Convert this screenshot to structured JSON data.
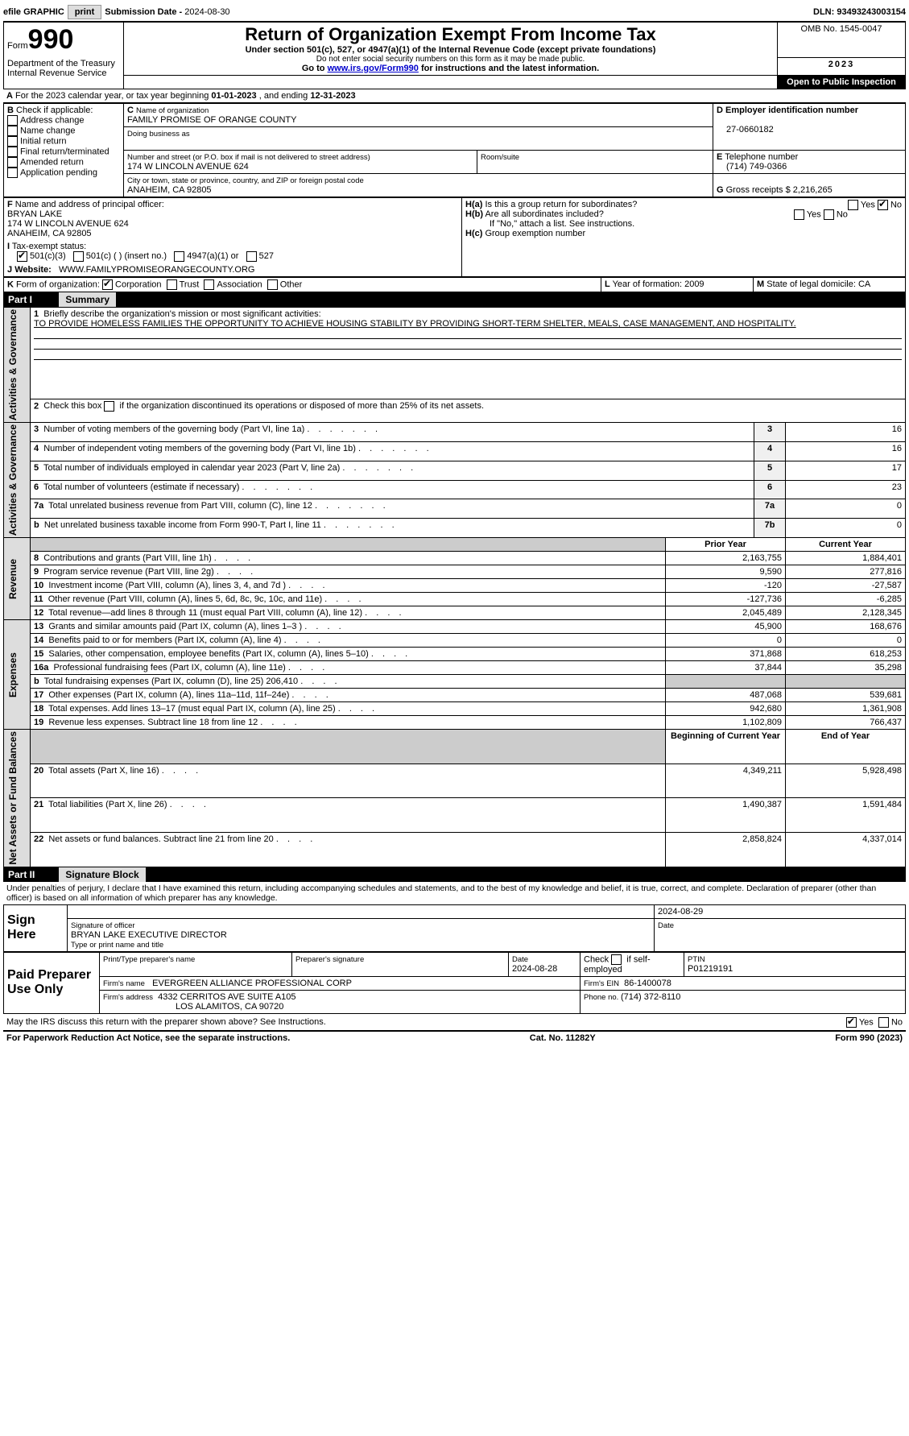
{
  "topbar": {
    "efile": "efile GRAPHIC",
    "print": "print",
    "sub_label": "Submission Date - ",
    "sub_date": "2024-08-30",
    "dln_label": "DLN: ",
    "dln": "93493243003154"
  },
  "header": {
    "form_word": "Form",
    "form_no": "990",
    "dept": "Department of the Treasury\nInternal Revenue Service",
    "title": "Return of Organization Exempt From Income Tax",
    "sub1": "Under section 501(c), 527, or 4947(a)(1) of the Internal Revenue Code (except private foundations)",
    "sub2": "Do not enter social security numbers on this form as it may be made public.",
    "sub3_pre": "Go to ",
    "sub3_link": "www.irs.gov/Form990",
    "sub3_post": " for instructions and the latest information.",
    "omb": "OMB No. 1545-0047",
    "year": "2023",
    "open": "Open to Public\nInspection"
  },
  "A": {
    "label": "For the 2023 calendar year, or tax year beginning ",
    "begin": "01-01-2023",
    "mid": " , and ending ",
    "end": "12-31-2023"
  },
  "B": {
    "label": "Check if applicable:",
    "address": "Address change",
    "name": "Name change",
    "initial": "Initial return",
    "final": "Final return/terminated",
    "amended": "Amended return",
    "app": "Application pending"
  },
  "C": {
    "name_lbl": "Name of organization",
    "name": "FAMILY PROMISE OF ORANGE COUNTY",
    "dba_lbl": "Doing business as",
    "addr_lbl": "Number and street (or P.O. box if mail is not delivered to street address)",
    "addr": "174 W LINCOLN AVENUE 624",
    "room_lbl": "Room/suite",
    "city_lbl": "City or town, state or province, country, and ZIP or foreign postal code",
    "city": "ANAHEIM, CA  92805"
  },
  "D": {
    "lbl": "Employer identification number",
    "val": "27-0660182"
  },
  "E": {
    "lbl": "Telephone number",
    "val": "(714) 749-0366"
  },
  "G": {
    "lbl": "Gross receipts $",
    "val": "2,216,265"
  },
  "F": {
    "lbl": "Name and address of principal officer:",
    "name": "BRYAN LAKE",
    "addr1": "174 W LINCOLN AVENUE 624",
    "addr2": "ANAHEIM, CA  92805"
  },
  "H": {
    "a_lbl": "Is this a group return for subordinates?",
    "b_lbl": "Are all subordinates included?",
    "b_note": "If \"No,\" attach a list. See instructions.",
    "c_lbl": "Group exemption number",
    "yes": "Yes",
    "no": "No"
  },
  "I": {
    "lbl": "Tax-exempt status:",
    "o1": "501(c)(3)",
    "o2": "501(c) (  ) (insert no.)",
    "o3": "4947(a)(1) or",
    "o4": "527"
  },
  "J": {
    "lbl": "Website:",
    "val": "WWW.FAMILYPROMISEORANGECOUNTY.ORG"
  },
  "K": {
    "lbl": "Form of organization:",
    "corp": "Corporation",
    "trust": "Trust",
    "assoc": "Association",
    "other": "Other"
  },
  "L": {
    "lbl": "Year of formation: ",
    "val": "2009"
  },
  "M": {
    "lbl": "State of legal domicile: ",
    "val": "CA"
  },
  "part1": {
    "hdr": "Part I",
    "title": "Summary",
    "l1_lbl": "Briefly describe the organization's mission or most significant activities:",
    "l1_val": "TO PROVIDE HOMELESS FAMILIES THE OPPORTUNITY TO ACHIEVE HOUSING STABILITY BY PROVIDING SHORT-TERM SHELTER, MEALS, CASE MANAGEMENT, AND HOSPITALITY.",
    "l2": "Check this box         if the organization discontinued its operations or disposed of more than 25% of its net assets.",
    "sections": {
      "gov": "Activities & Governance",
      "rev": "Revenue",
      "exp": "Expenses",
      "net": "Net Assets or\nFund Balances"
    },
    "col_prior": "Prior Year",
    "col_curr": "Current Year",
    "col_begin": "Beginning of Current Year",
    "col_end": "End of Year",
    "rows_gov": [
      {
        "n": "3",
        "t": "Number of voting members of the governing body (Part VI, line 1a)",
        "box": "3",
        "v": "16"
      },
      {
        "n": "4",
        "t": "Number of independent voting members of the governing body (Part VI, line 1b)",
        "box": "4",
        "v": "16"
      },
      {
        "n": "5",
        "t": "Total number of individuals employed in calendar year 2023 (Part V, line 2a)",
        "box": "5",
        "v": "17"
      },
      {
        "n": "6",
        "t": "Total number of volunteers (estimate if necessary)",
        "box": "6",
        "v": "23"
      },
      {
        "n": "7a",
        "t": "Total unrelated business revenue from Part VIII, column (C), line 12",
        "box": "7a",
        "v": "0"
      },
      {
        "n": "b",
        "t": "Net unrelated business taxable income from Form 990-T, Part I, line 11",
        "box": "7b",
        "v": "0"
      }
    ],
    "rows_rev": [
      {
        "n": "8",
        "t": "Contributions and grants (Part VIII, line 1h)",
        "p": "2,163,755",
        "c": "1,884,401"
      },
      {
        "n": "9",
        "t": "Program service revenue (Part VIII, line 2g)",
        "p": "9,590",
        "c": "277,816"
      },
      {
        "n": "10",
        "t": "Investment income (Part VIII, column (A), lines 3, 4, and 7d )",
        "p": "-120",
        "c": "-27,587"
      },
      {
        "n": "11",
        "t": "Other revenue (Part VIII, column (A), lines 5, 6d, 8c, 9c, 10c, and 11e)",
        "p": "-127,736",
        "c": "-6,285"
      },
      {
        "n": "12",
        "t": "Total revenue—add lines 8 through 11 (must equal Part VIII, column (A), line 12)",
        "p": "2,045,489",
        "c": "2,128,345"
      }
    ],
    "rows_exp": [
      {
        "n": "13",
        "t": "Grants and similar amounts paid (Part IX, column (A), lines 1–3 )",
        "p": "45,900",
        "c": "168,676"
      },
      {
        "n": "14",
        "t": "Benefits paid to or for members (Part IX, column (A), line 4)",
        "p": "0",
        "c": "0"
      },
      {
        "n": "15",
        "t": "Salaries, other compensation, employee benefits (Part IX, column (A), lines 5–10)",
        "p": "371,868",
        "c": "618,253"
      },
      {
        "n": "16a",
        "t": "Professional fundraising fees (Part IX, column (A), line 11e)",
        "p": "37,844",
        "c": "35,298"
      },
      {
        "n": "b",
        "t": "Total fundraising expenses (Part IX, column (D), line 25) 206,410",
        "grey": true
      },
      {
        "n": "17",
        "t": "Other expenses (Part IX, column (A), lines 11a–11d, 11f–24e)",
        "p": "487,068",
        "c": "539,681"
      },
      {
        "n": "18",
        "t": "Total expenses. Add lines 13–17 (must equal Part IX, column (A), line 25)",
        "p": "942,680",
        "c": "1,361,908"
      },
      {
        "n": "19",
        "t": "Revenue less expenses. Subtract line 18 from line 12",
        "p": "1,102,809",
        "c": "766,437"
      }
    ],
    "rows_net": [
      {
        "n": "20",
        "t": "Total assets (Part X, line 16)",
        "p": "4,349,211",
        "c": "5,928,498"
      },
      {
        "n": "21",
        "t": "Total liabilities (Part X, line 26)",
        "p": "1,490,387",
        "c": "1,591,484"
      },
      {
        "n": "22",
        "t": "Net assets or fund balances. Subtract line 21 from line 20",
        "p": "2,858,824",
        "c": "4,337,014"
      }
    ]
  },
  "part2": {
    "hdr": "Part II",
    "title": "Signature Block",
    "decl": "Under penalties of perjury, I declare that I have examined this return, including accompanying schedules and statements, and to the best of my knowledge and belief, it is true, correct, and complete. Declaration of preparer (other than officer) is based on all information of which preparer has any knowledge.",
    "sign_here": "Sign Here",
    "sig_officer": "Signature of officer",
    "officer": "BRYAN LAKE  EXECUTIVE DIRECTOR",
    "type_name": "Type or print name and title",
    "date_lbl": "Date",
    "date1": "2024-08-29",
    "paid": "Paid Preparer Use Only",
    "prep_name_lbl": "Print/Type preparer's name",
    "prep_sig_lbl": "Preparer's signature",
    "date2_lbl": "Date",
    "date2": "2024-08-28",
    "check_self": "Check         if self-employed",
    "ptin_lbl": "PTIN",
    "ptin": "P01219191",
    "firm_name_lbl": "Firm's name",
    "firm_name": "EVERGREEN ALLIANCE PROFESSIONAL CORP",
    "firm_ein_lbl": "Firm's EIN",
    "firm_ein": "86-1400078",
    "firm_addr_lbl": "Firm's address",
    "firm_addr1": "4332 CERRITOS AVE SUITE A105",
    "firm_addr2": "LOS ALAMITOS, CA  90720",
    "phone_lbl": "Phone no. ",
    "phone": "(714) 372-8110",
    "discuss": "May the IRS discuss this return with the preparer shown above? See Instructions."
  },
  "footer": {
    "left": "For Paperwork Reduction Act Notice, see the separate instructions.",
    "mid": "Cat. No. 11282Y",
    "right": "Form 990 (2023)"
  }
}
